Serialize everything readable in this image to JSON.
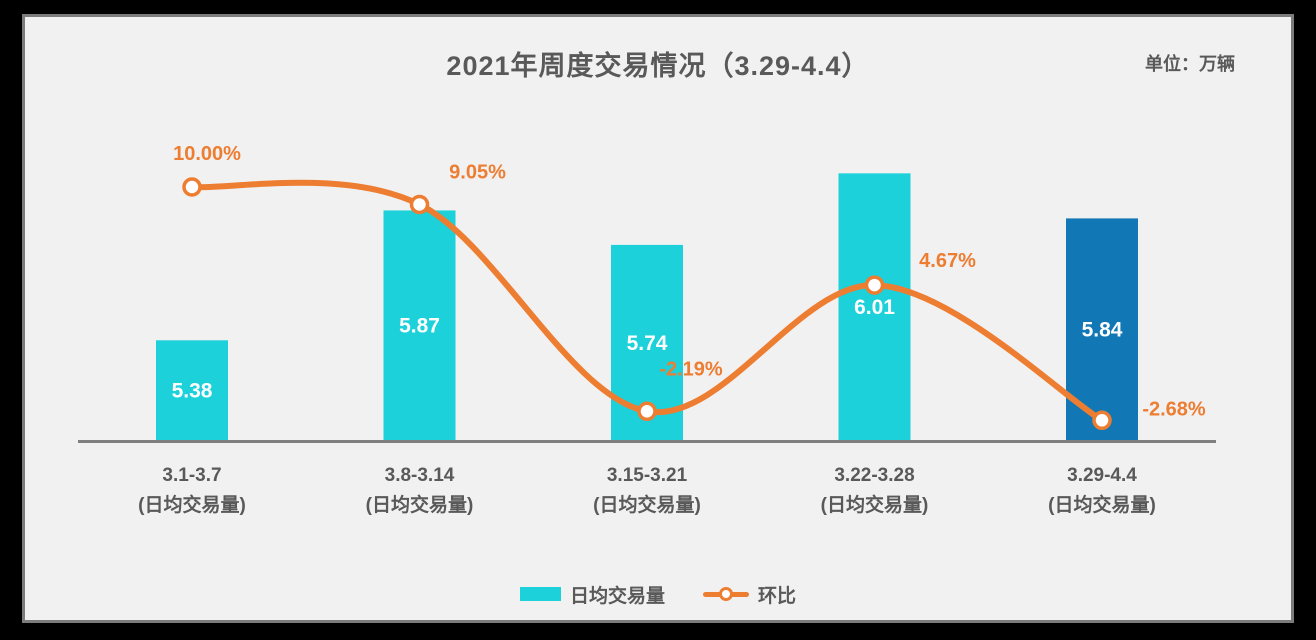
{
  "header": {
    "title": "2021年周度交易情况（3.29-4.4）",
    "unit_label": "单位：万辆"
  },
  "chart_data": {
    "type": "bar",
    "combo": "bar+line",
    "title": "2021年周度交易情况（3.29-4.4）",
    "unit": "万辆",
    "categories": [
      "3.1-3.7",
      "3.8-3.14",
      "3.15-3.21",
      "3.22-3.28",
      "3.29-4.4"
    ],
    "category_sublabel": "(日均交易量)",
    "series": [
      {
        "name": "日均交易量",
        "type": "bar",
        "values": [
          5.38,
          5.87,
          5.74,
          6.01,
          5.84
        ],
        "value_labels": [
          "5.38",
          "5.87",
          "5.74",
          "6.01",
          "5.84"
        ],
        "bar_colors": [
          "#1CD1D9",
          "#1CD1D9",
          "#1CD1D9",
          "#1CD1D9",
          "#1178B5"
        ]
      },
      {
        "name": "环比",
        "type": "line",
        "values": [
          10.0,
          9.05,
          -2.19,
          4.67,
          -2.68
        ],
        "value_labels": [
          "10.00%",
          "9.05%",
          "-2.19%",
          "4.67%",
          "-2.68%"
        ],
        "color": "#ED7D31"
      }
    ],
    "axes": {
      "value_axis_visible": false,
      "bar_axis_min_implied": 5.0,
      "line_axis_unit": "%"
    },
    "grid": false,
    "legend_position": "bottom"
  },
  "colors": {
    "background": "#f1f1f2",
    "frame": "#000000",
    "border_gray": "#7c7c7c",
    "bar_cyan": "#1CD1D9",
    "bar_blue": "#1178B5",
    "line_orange": "#ED7D31",
    "text_gray": "#595959",
    "axis_gray": "#7f7f7f",
    "bar_value_text": "#ffffff"
  }
}
